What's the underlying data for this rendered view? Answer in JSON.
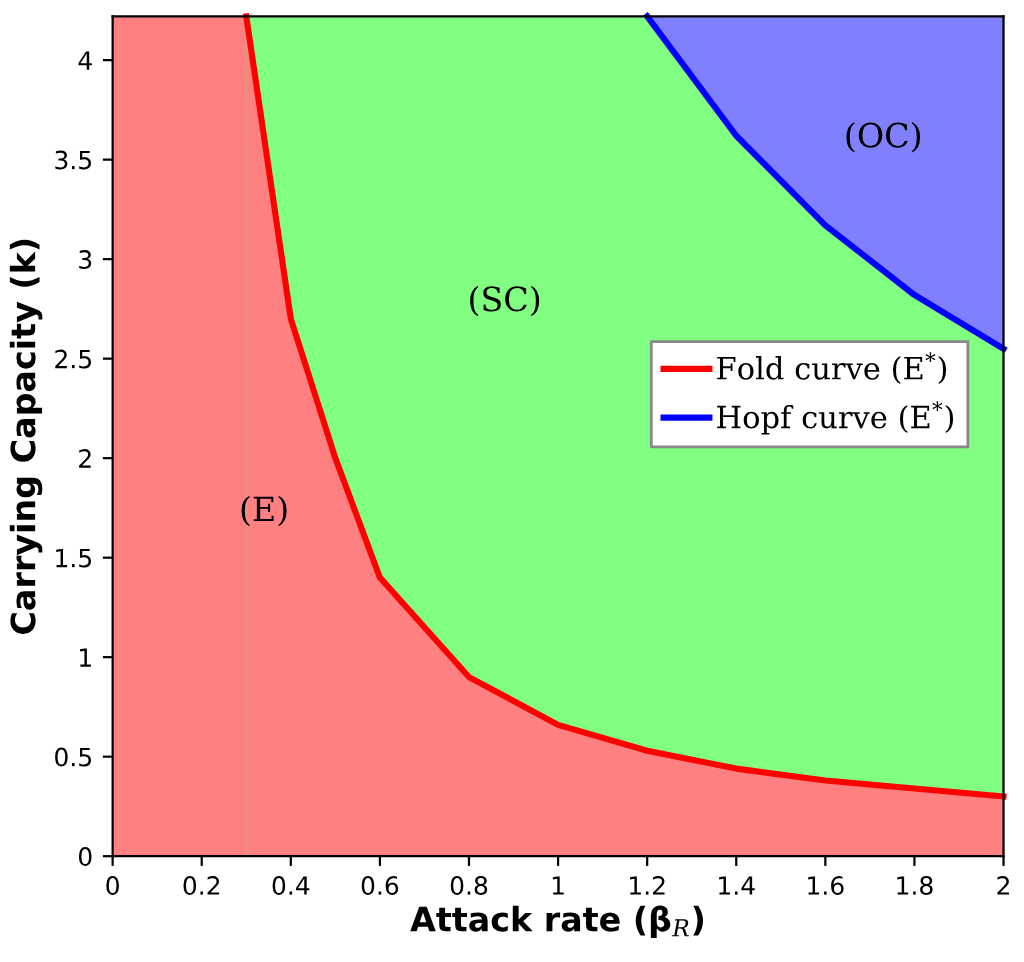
{
  "chart_data": {
    "type": "line",
    "xlabel": "Attack rate (β$_{R}$)",
    "ylabel": "Carrying Capacity (k)",
    "xlim": [
      0,
      2
    ],
    "ylim": [
      0,
      4.22
    ],
    "xticks": [
      0,
      0.2,
      0.4,
      0.6,
      0.8,
      1,
      1.2,
      1.4,
      1.6,
      1.8,
      2
    ],
    "yticks": [
      0,
      0.5,
      1,
      1.5,
      2,
      2.5,
      3,
      3.5,
      4
    ],
    "series": [
      {
        "name": "Fold curve (E$^{*}$)",
        "color": "#ff0000",
        "x": [
          0.3,
          0.4,
          0.5,
          0.6,
          0.8,
          1.0,
          1.2,
          1.4,
          1.6,
          1.8,
          2.0
        ],
        "values": [
          4.22,
          2.7,
          2.0,
          1.4,
          0.9,
          0.66,
          0.53,
          0.44,
          0.38,
          0.34,
          0.3
        ],
        "lower": [
          0,
          0,
          0,
          0,
          0,
          0,
          0,
          0,
          0,
          0,
          0
        ],
        "upper": [
          4.22,
          2.7,
          2.0,
          1.4,
          0.9,
          0.66,
          0.53,
          0.44,
          0.38,
          0.34,
          0.3
        ]
      },
      {
        "name": "Hopf curve (E$^{*}$)",
        "color": "#0000ff",
        "x": [
          1.2,
          1.4,
          1.6,
          1.8,
          2.0
        ],
        "values": [
          4.22,
          3.62,
          3.17,
          2.82,
          2.55
        ],
        "lower": [
          4.22,
          3.62,
          3.17,
          2.82,
          2.55
        ],
        "upper": [
          4.22,
          4.22,
          4.22,
          4.22,
          4.22
        ]
      }
    ],
    "bands": [
      {
        "axis": "x",
        "from": 0,
        "to": 2,
        "color": "#80ff80"
      },
      {
        "axis": "x",
        "from": 0,
        "to": 0.3,
        "color": "#ff8080"
      }
    ],
    "annotations": [
      "(E)",
      "(SC)",
      "(OC)"
    ],
    "legend": "right",
    "grid": false,
    "marker": "none",
    "line_style": "solid"
  }
}
